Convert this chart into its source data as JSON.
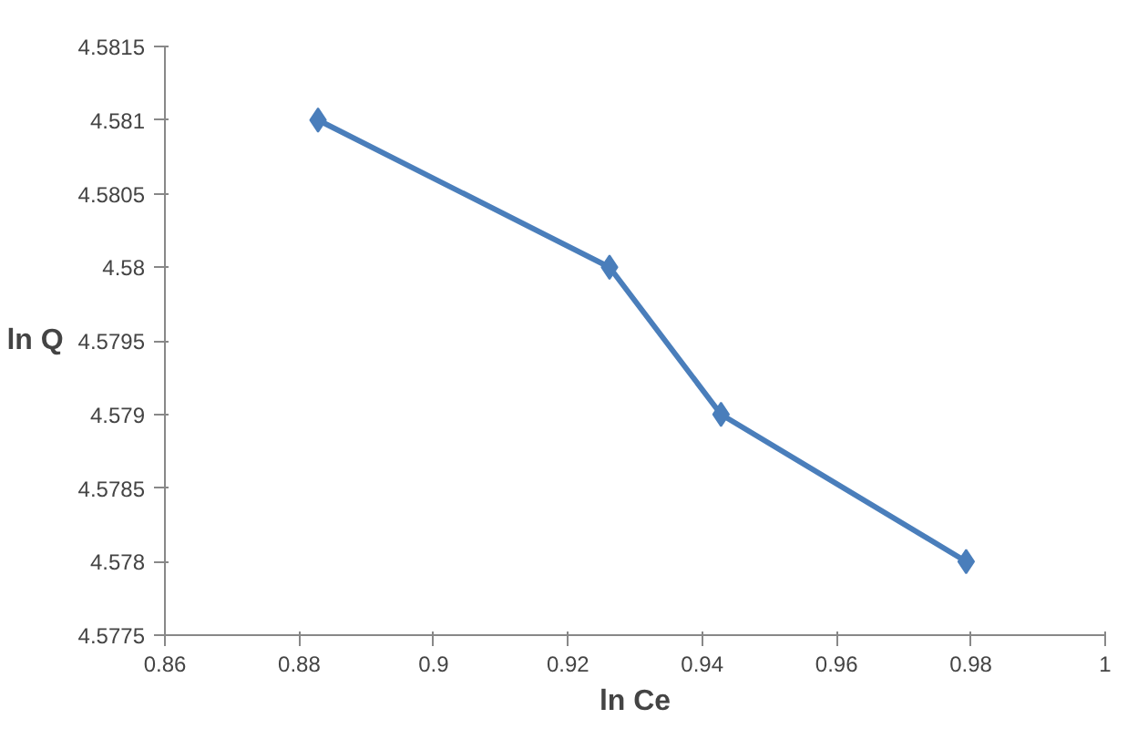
{
  "chart_data": {
    "type": "line",
    "xlabel": "ln Ce",
    "ylabel": "ln Q",
    "x": [
      0.8828,
      0.9262,
      0.9428,
      0.9793
    ],
    "series": [
      {
        "color": "#4a7ebb",
        "values": [
          4.581,
          4.58,
          4.579,
          4.578
        ]
      }
    ],
    "xlim": [
      0.86,
      1
    ],
    "xticks": [
      0.86,
      0.88,
      0.9,
      0.92,
      0.94,
      0.96,
      0.98,
      1
    ],
    "ylim": [
      4.5775,
      4.5815
    ],
    "yticks": [
      4.5775,
      4.578,
      4.5785,
      4.579,
      4.5795,
      4.58,
      4.5805,
      4.581,
      4.5815
    ],
    "grid": false,
    "marker": "diamond",
    "line_style": "solid"
  }
}
